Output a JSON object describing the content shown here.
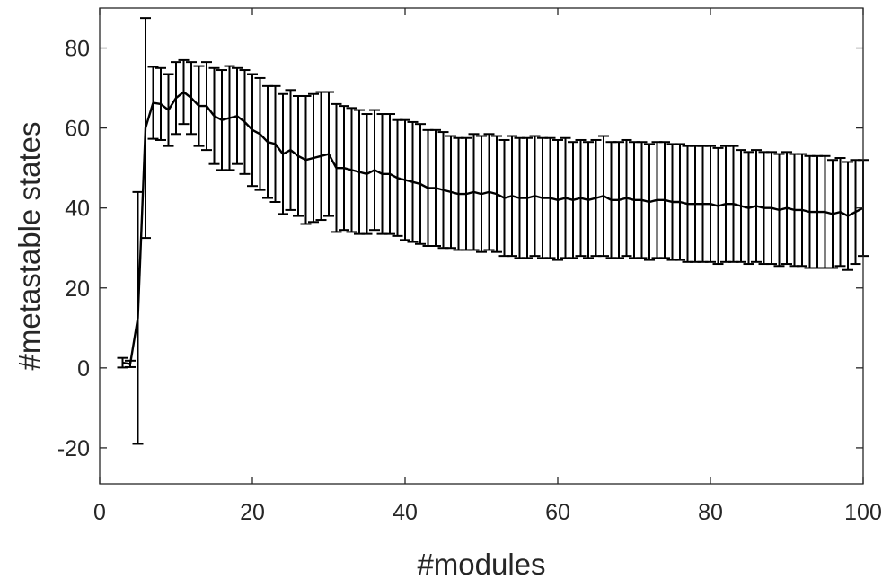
{
  "chart_data": {
    "type": "line",
    "title": "",
    "xlabel": "#modules",
    "ylabel": "#metastable states",
    "xlim": [
      0,
      100
    ],
    "ylim": [
      -29,
      90
    ],
    "xticks": [
      0,
      20,
      40,
      60,
      80,
      100
    ],
    "yticks": [
      -20,
      0,
      20,
      40,
      60,
      80
    ],
    "xtick_labels": [
      "0",
      "20",
      "40",
      "60",
      "80",
      "100"
    ],
    "ytick_labels": [
      "-20",
      "0",
      "20",
      "40",
      "60",
      "80"
    ],
    "grid": false,
    "legend": "none",
    "error_bars": true,
    "line_color": "#000000",
    "axis_color": "#262626",
    "series": [
      {
        "x": [
          3,
          4,
          5,
          6,
          7,
          8,
          9,
          10,
          11,
          12,
          13,
          14,
          15,
          16,
          17,
          18,
          19,
          20,
          21,
          22,
          23,
          24,
          25,
          26,
          27,
          28,
          29,
          30,
          31,
          32,
          33,
          34,
          35,
          36,
          37,
          38,
          39,
          40,
          41,
          42,
          43,
          44,
          45,
          46,
          47,
          48,
          49,
          50,
          51,
          52,
          53,
          54,
          55,
          56,
          57,
          58,
          59,
          60,
          61,
          62,
          63,
          64,
          65,
          66,
          67,
          68,
          69,
          70,
          71,
          72,
          73,
          74,
          75,
          76,
          77,
          78,
          79,
          80,
          81,
          82,
          83,
          84,
          85,
          86,
          87,
          88,
          89,
          90,
          91,
          92,
          93,
          94,
          95,
          96,
          97,
          98,
          99,
          100
        ],
        "y": [
          1.3,
          1,
          12.5,
          60,
          66.3,
          66,
          64.5,
          67.5,
          69,
          67.5,
          65.5,
          65.5,
          63,
          62,
          62.5,
          63,
          61.5,
          59.5,
          58.5,
          56.5,
          56,
          53.5,
          54.5,
          53,
          52,
          52.5,
          53,
          53.5,
          50,
          50,
          49.5,
          49,
          48.5,
          49.5,
          48.5,
          48.5,
          47.5,
          47,
          46.5,
          46,
          45,
          45,
          44.5,
          44,
          43.5,
          43.5,
          44,
          43.5,
          44,
          43.5,
          42.5,
          43,
          42.5,
          42.5,
          43,
          42.5,
          42.5,
          42,
          42.5,
          42,
          42.5,
          42,
          42.5,
          43,
          42,
          42,
          42.5,
          42,
          42,
          41.5,
          42,
          42,
          41.5,
          41.5,
          41,
          41,
          41,
          41,
          40.5,
          41,
          41,
          40.5,
          40,
          40.5,
          40,
          40,
          39.5,
          40,
          39.5,
          39.5,
          39,
          39,
          39,
          38.5,
          39,
          38,
          39,
          40
        ],
        "err": [
          1.2,
          0.8,
          31.5,
          27.5,
          9,
          9,
          9,
          9,
          8,
          9,
          10,
          11,
          12,
          12.5,
          13,
          12,
          13,
          14,
          14,
          14,
          14.5,
          15,
          15,
          15,
          16,
          16,
          16,
          15.5,
          16,
          15.5,
          15.5,
          15.5,
          15,
          15,
          15,
          15,
          14.5,
          15,
          15,
          15,
          14.5,
          14.5,
          14.5,
          14,
          14,
          14,
          14.5,
          14.5,
          14.5,
          14.5,
          14.5,
          15,
          15,
          15,
          15,
          15,
          15,
          15,
          15,
          14.5,
          14.5,
          14.5,
          14.5,
          15,
          14.5,
          14.5,
          14.5,
          14.5,
          14.5,
          14.5,
          14.5,
          14.5,
          14.5,
          14.5,
          14.5,
          14.5,
          14.5,
          14.5,
          14.5,
          14.5,
          14.5,
          14,
          14,
          14,
          14,
          14,
          14,
          14,
          14,
          14,
          14,
          14,
          14,
          13.5,
          13.5,
          13.5,
          13,
          12
        ]
      }
    ]
  }
}
